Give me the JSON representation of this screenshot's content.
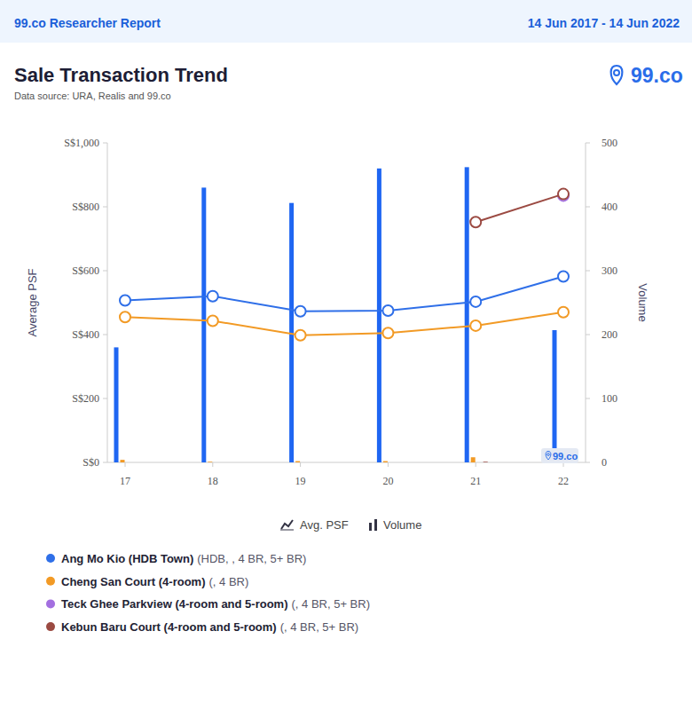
{
  "page": {
    "header_left": "99.co Researcher Report",
    "header_right": "14 Jun 2017 - 14 Jun 2022",
    "logo": "99.co",
    "watermark": "99.co"
  },
  "chart_data": {
    "type": "bar",
    "title": "Sale Transaction Trend",
    "subtitle": "Data source: URA, Realis and 99.co",
    "ylabel": "Average PSF",
    "y2label": "Volume",
    "measure_legend": {
      "line": "Avg. PSF",
      "bar": "Volume"
    },
    "categories": [
      "17",
      "18",
      "19",
      "20",
      "21",
      "22"
    ],
    "ylim": [
      0,
      1000
    ],
    "yticks": [
      {
        "value": 0,
        "label": "S$0"
      },
      {
        "value": 200,
        "label": "S$200"
      },
      {
        "value": 400,
        "label": "S$400"
      },
      {
        "value": 600,
        "label": "S$600"
      },
      {
        "value": 800,
        "label": "S$800"
      },
      {
        "value": 1000,
        "label": "S$1,000"
      }
    ],
    "y2lim": [
      0,
      500
    ],
    "y2ticks": [
      0,
      100,
      200,
      300,
      400,
      500
    ],
    "grid": false,
    "series": [
      {
        "name": "Ang Mo Kio (HDB Town)",
        "details": "(HDB, , 4 BR, 5+ BR)",
        "color": "#2f6fe8",
        "type": "line",
        "marker": "circle",
        "values": [
          507,
          520,
          473,
          475,
          503,
          582
        ]
      },
      {
        "name": "Cheng San Court (4-room)",
        "details": "(, 4 BR)",
        "color": "#f29a25",
        "type": "line",
        "marker": "circle",
        "values": [
          455,
          443,
          398,
          405,
          428,
          470
        ]
      },
      {
        "name": "Teck Ghee Parkview (4-room and 5-room)",
        "details": "(, 4 BR, 5+ BR)",
        "color": "#a36fe0",
        "type": "line",
        "marker": "circle",
        "values": [
          null,
          null,
          null,
          null,
          null,
          835
        ]
      },
      {
        "name": "Kebun Baru Court (4-room and 5-room)",
        "details": "(, 4 BR, 5+ BR)",
        "color": "#9b4a42",
        "type": "line",
        "marker": "circle",
        "values": [
          null,
          null,
          null,
          null,
          752,
          840
        ]
      },
      {
        "color": "#1f66f2",
        "type": "bar",
        "axis": "y2",
        "values": [
          180,
          430,
          406,
          460,
          462,
          207
        ]
      },
      {
        "color": "#f29a25",
        "type": "bar",
        "axis": "y2",
        "values": [
          4,
          1,
          2,
          2,
          8,
          3
        ]
      },
      {
        "color": "#a36fe0",
        "type": "bar",
        "axis": "y2",
        "values": [
          null,
          null,
          null,
          null,
          null,
          1
        ]
      },
      {
        "color": "#9b4a42",
        "type": "bar",
        "axis": "y2",
        "values": [
          null,
          null,
          null,
          null,
          1,
          1
        ]
      }
    ]
  }
}
